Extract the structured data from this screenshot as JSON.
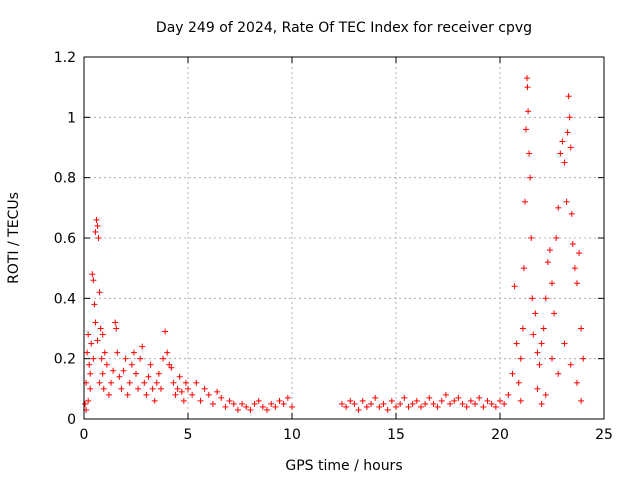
{
  "chart_data": {
    "type": "scatter",
    "title": "Day 249 of 2024, Rate Of TEC Index for receiver cpvg",
    "xlabel": "GPS time / hours",
    "ylabel": "ROTI / TECUs",
    "xlim": [
      0,
      25
    ],
    "ylim": [
      0,
      1.2
    ],
    "xticks": [
      0,
      5,
      10,
      15,
      20,
      25
    ],
    "xtick_labels": [
      "0",
      "5",
      "10",
      "15",
      "20",
      "25"
    ],
    "yticks": [
      0,
      0.2,
      0.4,
      0.6,
      0.8,
      1.0,
      1.2
    ],
    "ytick_labels": [
      "0",
      "0.2",
      "0.4",
      "0.6",
      "0.8",
      "1",
      "1.2"
    ],
    "grid": true,
    "marker": "plus",
    "color": "#ff0000",
    "series": [
      {
        "points": [
          [
            0.05,
            0.05
          ],
          [
            0.1,
            0.12
          ],
          [
            0.15,
            0.22
          ],
          [
            0.2,
            0.28
          ],
          [
            0.25,
            0.18
          ],
          [
            0.3,
            0.1
          ],
          [
            0.35,
            0.25
          ],
          [
            0.4,
            0.48
          ],
          [
            0.45,
            0.46
          ],
          [
            0.5,
            0.38
          ],
          [
            0.55,
            0.62
          ],
          [
            0.6,
            0.66
          ],
          [
            0.65,
            0.64
          ],
          [
            0.7,
            0.6
          ],
          [
            0.75,
            0.42
          ],
          [
            0.8,
            0.3
          ],
          [
            0.85,
            0.2
          ],
          [
            0.9,
            0.15
          ],
          [
            0.95,
            0.1
          ],
          [
            1.0,
            0.22
          ],
          [
            0.1,
            0.03
          ],
          [
            0.2,
            0.06
          ],
          [
            0.3,
            0.15
          ],
          [
            0.45,
            0.2
          ],
          [
            0.55,
            0.32
          ],
          [
            0.65,
            0.26
          ],
          [
            0.75,
            0.12
          ],
          [
            0.9,
            0.28
          ],
          [
            1.1,
            0.18
          ],
          [
            1.2,
            0.08
          ],
          [
            1.3,
            0.12
          ],
          [
            1.4,
            0.16
          ],
          [
            1.5,
            0.32
          ],
          [
            1.55,
            0.3
          ],
          [
            1.6,
            0.22
          ],
          [
            1.7,
            0.14
          ],
          [
            1.8,
            0.1
          ],
          [
            1.9,
            0.16
          ],
          [
            2.0,
            0.2
          ],
          [
            2.1,
            0.08
          ],
          [
            2.2,
            0.12
          ],
          [
            2.3,
            0.18
          ],
          [
            2.4,
            0.22
          ],
          [
            2.5,
            0.15
          ],
          [
            2.6,
            0.1
          ],
          [
            2.7,
            0.2
          ],
          [
            2.8,
            0.24
          ],
          [
            2.9,
            0.12
          ],
          [
            3.0,
            0.08
          ],
          [
            3.1,
            0.14
          ],
          [
            3.2,
            0.18
          ],
          [
            3.3,
            0.1
          ],
          [
            3.4,
            0.06
          ],
          [
            3.5,
            0.12
          ],
          [
            3.6,
            0.15
          ],
          [
            3.7,
            0.1
          ],
          [
            3.8,
            0.2
          ],
          [
            3.9,
            0.29
          ],
          [
            4.0,
            0.22
          ],
          [
            4.1,
            0.18
          ],
          [
            4.2,
            0.17
          ],
          [
            4.3,
            0.12
          ],
          [
            4.4,
            0.08
          ],
          [
            4.5,
            0.1
          ],
          [
            4.6,
            0.14
          ],
          [
            4.7,
            0.09
          ],
          [
            4.8,
            0.06
          ],
          [
            4.9,
            0.12
          ],
          [
            5.0,
            0.1
          ],
          [
            5.2,
            0.08
          ],
          [
            5.4,
            0.12
          ],
          [
            5.6,
            0.06
          ],
          [
            5.8,
            0.1
          ],
          [
            6.0,
            0.08
          ],
          [
            6.2,
            0.05
          ],
          [
            6.4,
            0.09
          ],
          [
            6.6,
            0.07
          ],
          [
            6.8,
            0.04
          ],
          [
            7.0,
            0.06
          ],
          [
            7.2,
            0.05
          ],
          [
            7.4,
            0.03
          ],
          [
            7.6,
            0.05
          ],
          [
            7.8,
            0.04
          ],
          [
            8.0,
            0.03
          ],
          [
            8.2,
            0.05
          ],
          [
            8.4,
            0.06
          ],
          [
            8.6,
            0.04
          ],
          [
            8.8,
            0.03
          ],
          [
            9.0,
            0.05
          ],
          [
            9.2,
            0.04
          ],
          [
            9.4,
            0.06
          ],
          [
            9.6,
            0.05
          ],
          [
            9.8,
            0.07
          ],
          [
            10.0,
            0.04
          ],
          [
            12.4,
            0.05
          ],
          [
            12.6,
            0.04
          ],
          [
            12.8,
            0.06
          ],
          [
            13.0,
            0.05
          ],
          [
            13.2,
            0.03
          ],
          [
            13.4,
            0.06
          ],
          [
            13.6,
            0.04
          ],
          [
            13.8,
            0.05
          ],
          [
            14.0,
            0.07
          ],
          [
            14.2,
            0.04
          ],
          [
            14.4,
            0.05
          ],
          [
            14.6,
            0.03
          ],
          [
            14.8,
            0.06
          ],
          [
            15.0,
            0.04
          ],
          [
            15.2,
            0.05
          ],
          [
            15.4,
            0.07
          ],
          [
            15.6,
            0.04
          ],
          [
            15.8,
            0.05
          ],
          [
            16.0,
            0.06
          ],
          [
            16.2,
            0.04
          ],
          [
            16.4,
            0.05
          ],
          [
            16.6,
            0.07
          ],
          [
            16.8,
            0.05
          ],
          [
            17.0,
            0.04
          ],
          [
            17.2,
            0.06
          ],
          [
            17.4,
            0.08
          ],
          [
            17.6,
            0.05
          ],
          [
            17.8,
            0.06
          ],
          [
            18.0,
            0.07
          ],
          [
            18.2,
            0.05
          ],
          [
            18.4,
            0.04
          ],
          [
            18.6,
            0.06
          ],
          [
            18.8,
            0.05
          ],
          [
            19.0,
            0.07
          ],
          [
            19.2,
            0.04
          ],
          [
            19.4,
            0.06
          ],
          [
            19.6,
            0.05
          ],
          [
            19.8,
            0.04
          ],
          [
            20.0,
            0.06
          ],
          [
            20.2,
            0.05
          ],
          [
            20.4,
            0.08
          ],
          [
            20.6,
            0.15
          ],
          [
            20.7,
            0.44
          ],
          [
            20.8,
            0.25
          ],
          [
            20.9,
            0.12
          ],
          [
            21.0,
            0.2
          ],
          [
            21.1,
            0.3
          ],
          [
            21.15,
            0.5
          ],
          [
            21.2,
            0.72
          ],
          [
            21.25,
            0.96
          ],
          [
            21.3,
            1.13
          ],
          [
            21.32,
            1.1
          ],
          [
            21.35,
            1.02
          ],
          [
            21.4,
            0.88
          ],
          [
            21.45,
            0.8
          ],
          [
            21.5,
            0.6
          ],
          [
            21.55,
            0.4
          ],
          [
            21.6,
            0.28
          ],
          [
            21.7,
            0.35
          ],
          [
            21.8,
            0.22
          ],
          [
            21.9,
            0.18
          ],
          [
            22.0,
            0.25
          ],
          [
            22.1,
            0.3
          ],
          [
            22.2,
            0.4
          ],
          [
            22.3,
            0.52
          ],
          [
            22.4,
            0.56
          ],
          [
            22.5,
            0.45
          ],
          [
            22.6,
            0.35
          ],
          [
            22.7,
            0.6
          ],
          [
            22.8,
            0.7
          ],
          [
            22.9,
            0.88
          ],
          [
            23.0,
            0.92
          ],
          [
            23.1,
            0.85
          ],
          [
            23.2,
            0.72
          ],
          [
            23.25,
            0.95
          ],
          [
            23.3,
            1.07
          ],
          [
            23.35,
            1.0
          ],
          [
            23.4,
            0.9
          ],
          [
            23.45,
            0.68
          ],
          [
            23.5,
            0.58
          ],
          [
            23.6,
            0.5
          ],
          [
            23.7,
            0.45
          ],
          [
            23.8,
            0.55
          ],
          [
            23.9,
            0.3
          ],
          [
            24.0,
            0.2
          ],
          [
            22.5,
            0.2
          ],
          [
            22.8,
            0.15
          ],
          [
            23.1,
            0.25
          ],
          [
            23.4,
            0.18
          ],
          [
            23.7,
            0.12
          ],
          [
            22.2,
            0.08
          ],
          [
            22.0,
            0.05
          ],
          [
            23.9,
            0.06
          ],
          [
            21.8,
            0.1
          ],
          [
            21.0,
            0.06
          ]
        ]
      }
    ]
  }
}
